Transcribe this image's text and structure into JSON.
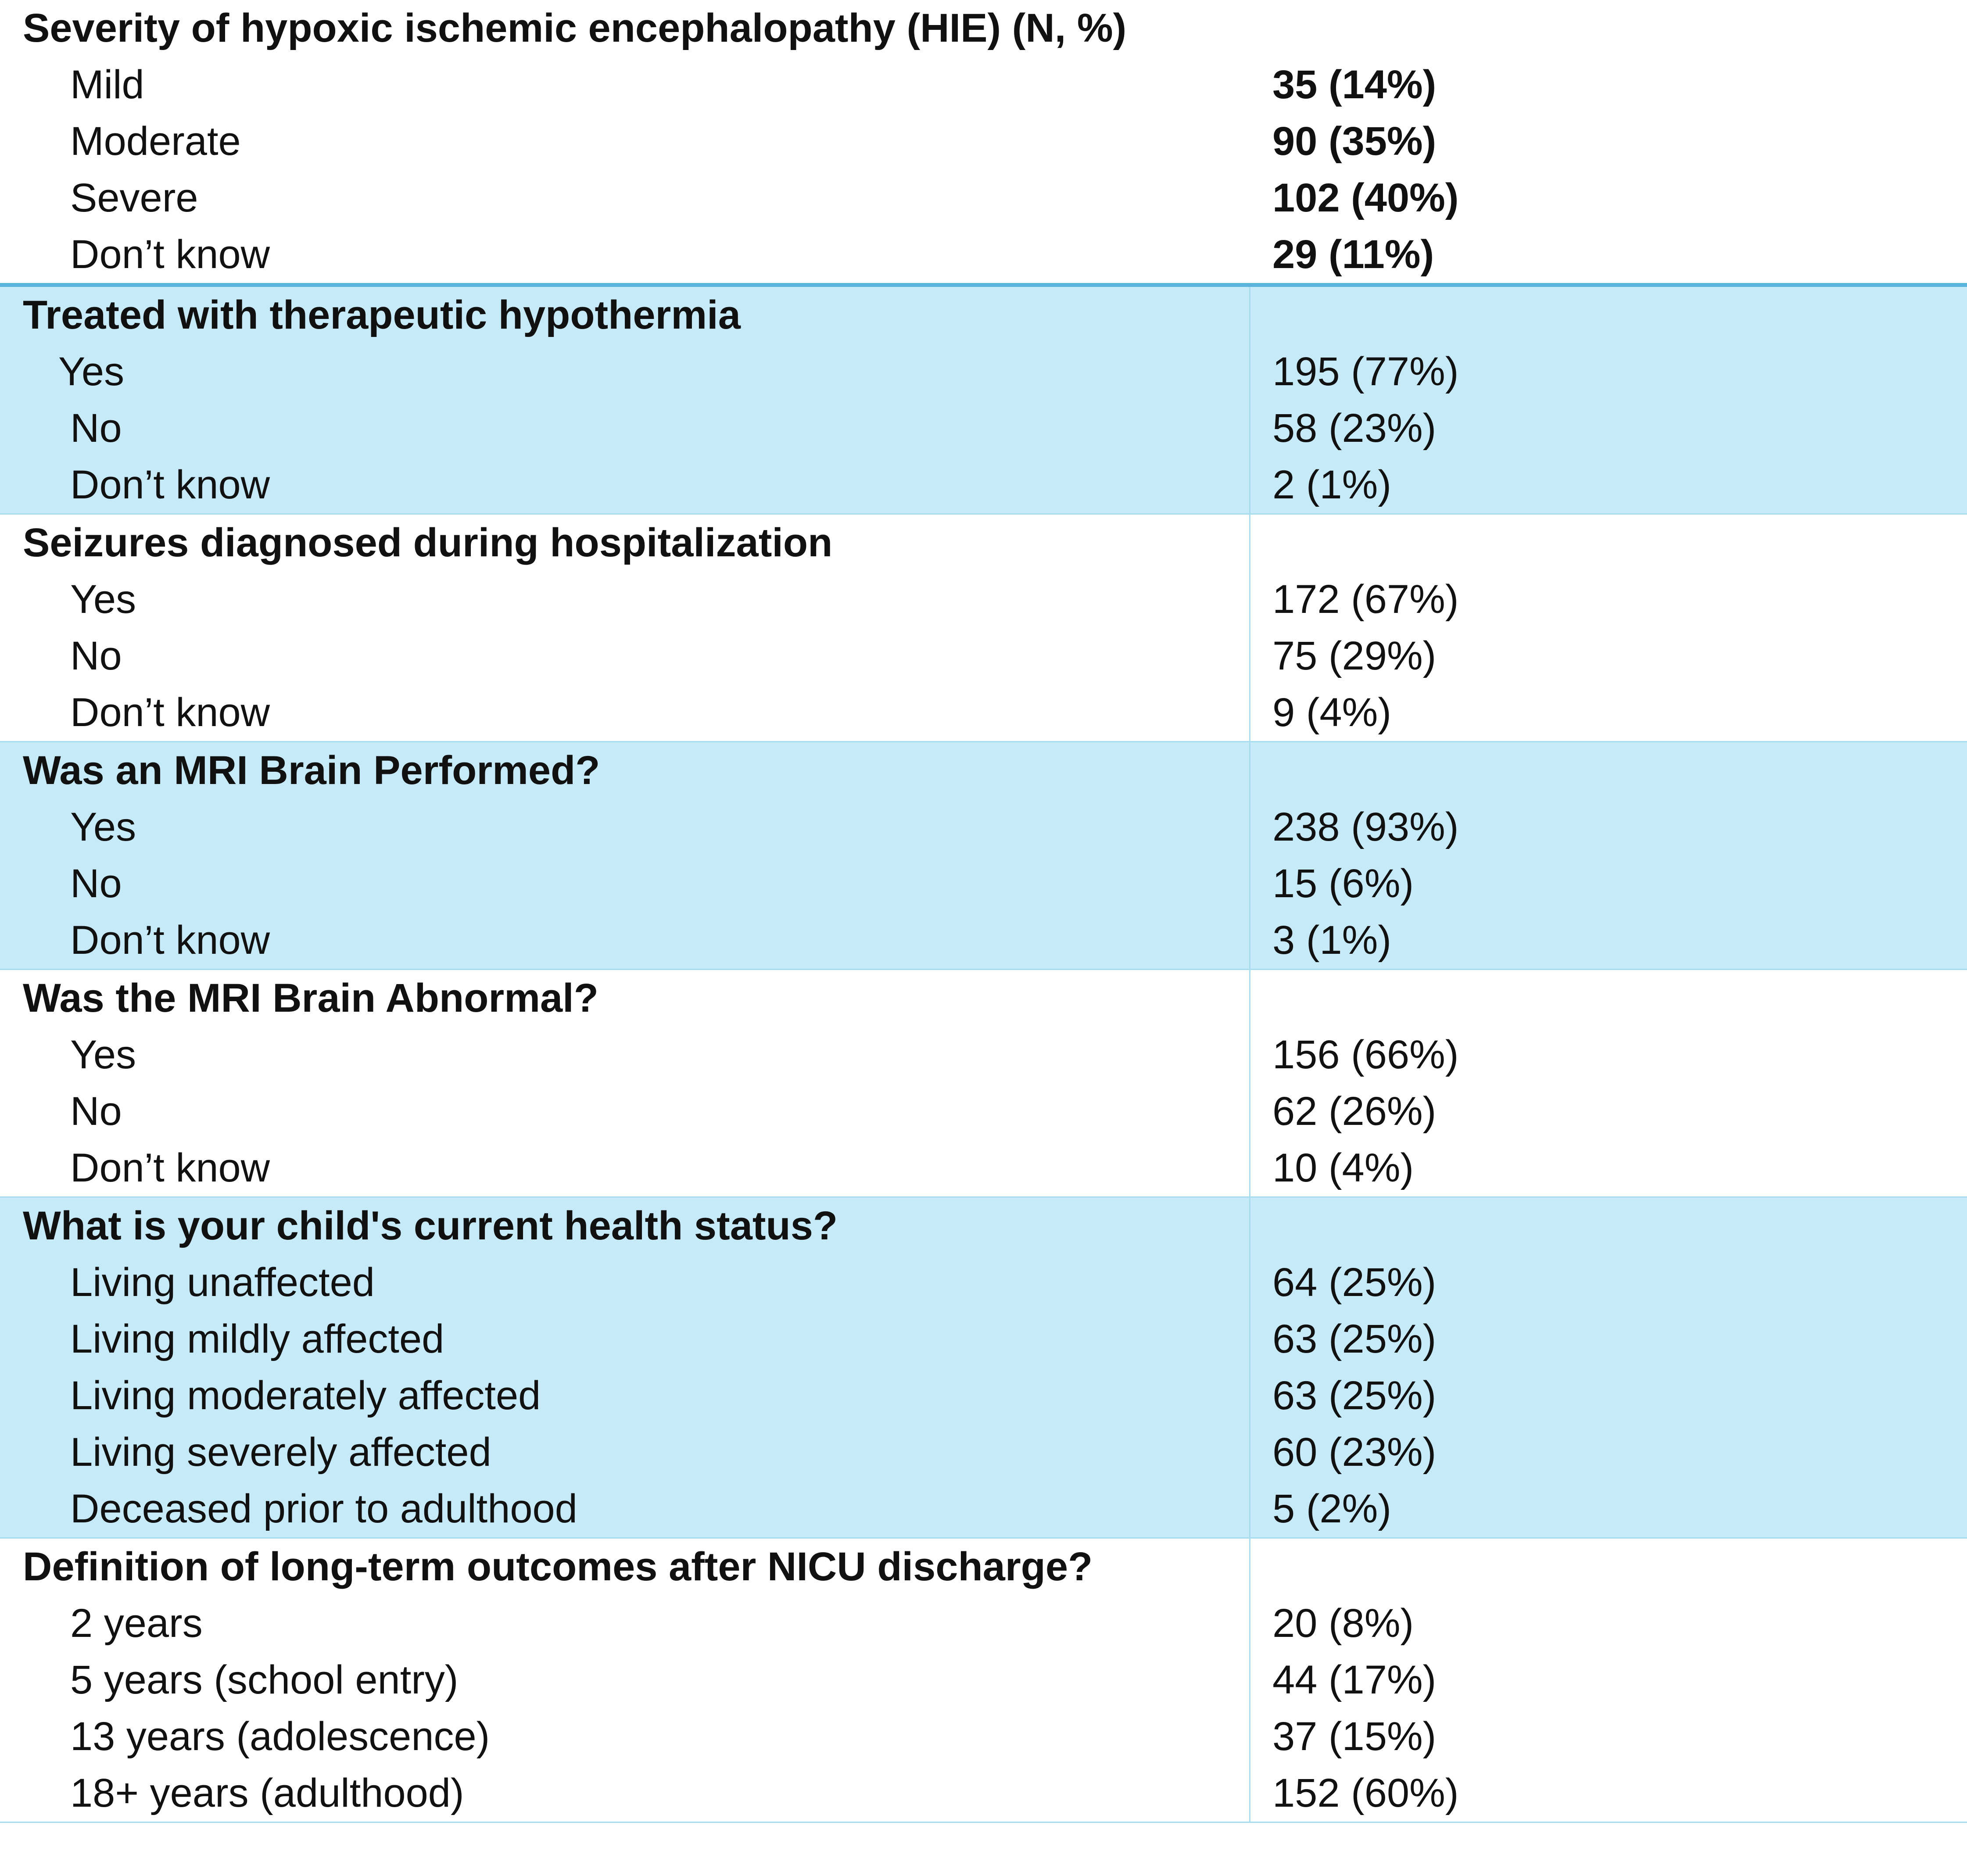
{
  "sections": [
    {
      "heading": "Severity of hypoxic ischemic encephalopathy (HIE) (N, %)",
      "shaded": false,
      "items": [
        {
          "label": "Mild",
          "value": "35 (14%)"
        },
        {
          "label": "Moderate",
          "value": "90 (35%)"
        },
        {
          "label": "Severe",
          "value": "102 (40%)"
        },
        {
          "label": "Don’t know",
          "value": "29 (11%)"
        }
      ]
    },
    {
      "heading": "Treated with therapeutic hypothermia",
      "shaded": true,
      "items": [
        {
          "label": "Yes",
          "value": "195 (77%)"
        },
        {
          "label": "No",
          "value": "58 (23%)"
        },
        {
          "label": "Don’t know",
          "value": "2 (1%)"
        }
      ]
    },
    {
      "heading": "Seizures diagnosed during hospitalization",
      "shaded": false,
      "items": [
        {
          "label": "Yes",
          "value": "172 (67%)"
        },
        {
          "label": "No",
          "value": "75 (29%)"
        },
        {
          "label": "Don’t know",
          "value": "9 (4%)"
        }
      ]
    },
    {
      "heading": "Was an MRI Brain Performed?",
      "shaded": true,
      "items": [
        {
          "label": "Yes",
          "value": "238 (93%)"
        },
        {
          "label": "No",
          "value": "15 (6%)"
        },
        {
          "label": "Don’t know",
          "value": "3 (1%)"
        }
      ]
    },
    {
      "heading": "Was the MRI Brain Abnormal?",
      "shaded": false,
      "items": [
        {
          "label": "Yes",
          "value": "156 (66%)"
        },
        {
          "label": "No",
          "value": "62 (26%)"
        },
        {
          "label": "Don’t know",
          "value": "10 (4%)"
        }
      ]
    },
    {
      "heading": "What is your child's current health status?",
      "shaded": true,
      "items": [
        {
          "label": "Living unaffected",
          "value": "64 (25%)"
        },
        {
          "label": "Living mildly affected",
          "value": "63 (25%)"
        },
        {
          "label": "Living moderately affected",
          "value": "63 (25%)"
        },
        {
          "label": "Living severely affected",
          "value": "60 (23%)"
        },
        {
          "label": "Deceased prior to adulthood",
          "value": "5 (2%)"
        }
      ]
    },
    {
      "heading": "Definition of long-term outcomes after NICU discharge?",
      "shaded": false,
      "items": [
        {
          "label": "2 years",
          "value": "20 (8%)"
        },
        {
          "label": "5 years (school entry)",
          "value": "44 (17%)"
        },
        {
          "label": "13 years (adolescence)",
          "value": "37 (15%)"
        },
        {
          "label": "18+ years (adulthood)",
          "value": "152 (60%)"
        }
      ]
    }
  ],
  "colors": {
    "shade": "#c7eaf8",
    "rule_strong": "#5ab4dc",
    "rule_light": "#a8dcef"
  }
}
